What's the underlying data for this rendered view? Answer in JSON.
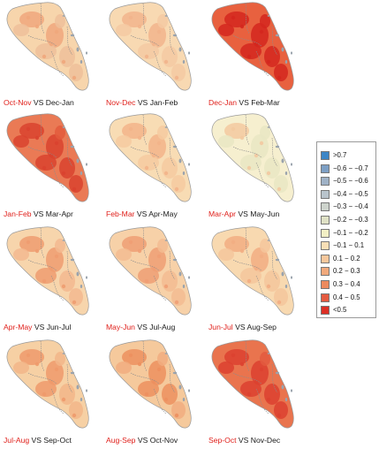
{
  "panels": [
    {
      "a": "Oct-Nov",
      "vs": "VS",
      "b": "Dec-Jan",
      "base": "#f7d5ac",
      "hot": [
        "#f0a77c",
        "#eec09a"
      ],
      "level": 0.35
    },
    {
      "a": "Nov-Dec",
      "vs": "VS",
      "b": "Jan-Feb",
      "base": "#f8d9b2",
      "hot": [
        "#f2b48c",
        "#f5c9a2"
      ],
      "level": 0.25
    },
    {
      "a": "Dec-Jan",
      "vs": "VS",
      "b": "Feb-Mar",
      "base": "#e8613f",
      "hot": [
        "#d4271e",
        "#e03b2c"
      ],
      "level": 0.95
    },
    {
      "a": "Jan-Feb",
      "vs": "VS",
      "b": "Mar-Apr",
      "base": "#ea7a55",
      "hot": [
        "#d9432f",
        "#e35a3d"
      ],
      "level": 0.8
    },
    {
      "a": "Feb-Mar",
      "vs": "VS",
      "b": "Apr-May",
      "base": "#f8dcb4",
      "hot": [
        "#f3b48a",
        "#f6caa0"
      ],
      "level": 0.25
    },
    {
      "a": "Mar-Apr",
      "vs": "VS",
      "b": "May-Jun",
      "base": "#f6efcf",
      "hot": [
        "#f3c9a0",
        "#e9e6c3"
      ],
      "level": 0.1
    },
    {
      "a": "Apr-May",
      "vs": "VS",
      "b": "Jun-Jul",
      "base": "#f7d5ac",
      "hot": [
        "#ee9c70",
        "#f3b98f"
      ],
      "level": 0.4
    },
    {
      "a": "May-Jun",
      "vs": "VS",
      "b": "Jul-Aug",
      "base": "#f7d1a8",
      "hot": [
        "#ef9f74",
        "#f3bc92"
      ],
      "level": 0.4
    },
    {
      "a": "Jun-Jul",
      "vs": "VS",
      "b": "Aug-Sep",
      "base": "#f8d9b0",
      "hot": [
        "#f2ad83",
        "#f5c59c"
      ],
      "level": 0.3
    },
    {
      "a": "Jul-Aug",
      "vs": "VS",
      "b": "Sep-Oct",
      "base": "#f6d0a4",
      "hot": [
        "#ee9a6c",
        "#f2b68a"
      ],
      "level": 0.45
    },
    {
      "a": "Aug-Sep",
      "vs": "VS",
      "b": "Oct-Nov",
      "base": "#f5c99c",
      "hot": [
        "#ec905f",
        "#f1ad80"
      ],
      "level": 0.5
    },
    {
      "a": "Sep-Oct",
      "vs": "VS",
      "b": "Nov-Dec",
      "base": "#e9744e",
      "hot": [
        "#dc4130",
        "#e35b3f"
      ],
      "level": 0.85
    }
  ],
  "legend": [
    {
      "label": ">0.7",
      "color": "#3d86c6"
    },
    {
      "label": "−0.6 − −0.7",
      "color": "#7d9fc4"
    },
    {
      "label": "−0.5 − −0.6",
      "color": "#9fb2c6"
    },
    {
      "label": "−0.4 − −0.5",
      "color": "#b9c4cc"
    },
    {
      "label": "−0.3 − −0.4",
      "color": "#cdd3cc"
    },
    {
      "label": "−0.2 − −0.3",
      "color": "#dfe1c5"
    },
    {
      "label": "−0.1 − −0.2",
      "color": "#f2efc5"
    },
    {
      "label": "−0.1 − 0.1",
      "color": "#f8dfb6"
    },
    {
      "label": "0.1 − 0.2",
      "color": "#f6c79c"
    },
    {
      "label": "0.2 − 0.3",
      "color": "#f1a97c"
    },
    {
      "label": "0.3 − 0.4",
      "color": "#ec8a5e"
    },
    {
      "label": "0.4 − 0.5",
      "color": "#e45a3f"
    },
    {
      "label": "<0.5",
      "color": "#dc2f25"
    }
  ],
  "colors": {
    "accent_text": "#e0201b",
    "border_lines": "#888888"
  }
}
